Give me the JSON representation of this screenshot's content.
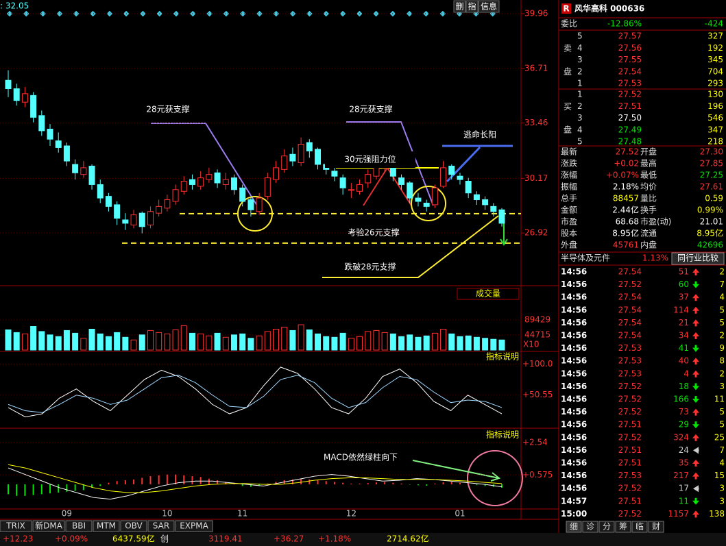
{
  "header": {
    "value_label": ": 32.05",
    "buttons": [
      "删",
      "指",
      "信息"
    ]
  },
  "price_chart": {
    "type": "candlestick",
    "ylim": [
      23.87,
      40.45
    ],
    "yticks": [
      39.96,
      36.71,
      33.46,
      30.17,
      26.92
    ],
    "candles": [
      [
        36.0,
        35.5,
        36.6,
        35.0
      ],
      [
        35.5,
        34.8,
        35.8,
        34.5
      ],
      [
        34.7,
        35.2,
        35.6,
        34.4
      ],
      [
        35.1,
        33.8,
        35.3,
        33.5
      ],
      [
        33.9,
        33.0,
        34.2,
        32.7
      ],
      [
        33.1,
        32.5,
        33.4,
        32.1
      ],
      [
        32.4,
        32.0,
        32.9,
        31.7
      ],
      [
        32.1,
        31.2,
        32.3,
        30.9
      ],
      [
        31.0,
        30.5,
        31.3,
        30.1
      ],
      [
        30.4,
        30.8,
        31.2,
        30.2
      ],
      [
        30.9,
        29.8,
        31.0,
        29.5
      ],
      [
        29.8,
        29.0,
        30.1,
        28.7
      ],
      [
        29.1,
        28.5,
        29.3,
        28.2
      ],
      [
        28.6,
        27.8,
        28.8,
        27.4
      ],
      [
        27.7,
        27.5,
        28.1,
        27.1
      ],
      [
        27.4,
        28.0,
        28.3,
        27.2
      ],
      [
        28.1,
        27.3,
        28.2,
        26.9
      ],
      [
        27.4,
        28.2,
        28.5,
        27.2
      ],
      [
        28.1,
        28.5,
        28.9,
        27.9
      ],
      [
        28.4,
        28.9,
        29.2,
        28.2
      ],
      [
        28.8,
        29.5,
        29.8,
        28.6
      ],
      [
        29.4,
        30.0,
        30.3,
        29.2
      ],
      [
        30.1,
        29.8,
        30.4,
        29.5
      ],
      [
        29.7,
        30.2,
        30.6,
        29.5
      ],
      [
        30.1,
        30.4,
        30.8,
        29.9
      ],
      [
        30.5,
        29.9,
        30.7,
        29.6
      ],
      [
        29.8,
        30.1,
        30.5,
        29.5
      ],
      [
        30.2,
        29.5,
        30.4,
        29.2
      ],
      [
        29.6,
        28.8,
        29.8,
        28.5
      ],
      [
        28.9,
        28.3,
        29.1,
        27.9
      ],
      [
        28.2,
        29.0,
        29.3,
        28.0
      ],
      [
        29.1,
        30.2,
        30.5,
        28.9
      ],
      [
        30.1,
        30.8,
        31.2,
        29.9
      ],
      [
        30.7,
        31.5,
        31.9,
        30.5
      ],
      [
        31.6,
        31.2,
        32.0,
        30.9
      ],
      [
        31.1,
        32.2,
        32.6,
        30.9
      ],
      [
        32.3,
        31.8,
        32.5,
        31.4
      ],
      [
        31.9,
        31.0,
        32.0,
        30.7
      ],
      [
        31.0,
        30.7,
        31.3,
        30.4
      ],
      [
        30.6,
        30.3,
        30.9,
        30.0
      ],
      [
        30.2,
        29.6,
        30.4,
        29.2
      ],
      [
        29.5,
        29.5,
        29.9,
        29.0
      ],
      [
        29.4,
        29.8,
        30.1,
        29.2
      ],
      [
        29.9,
        30.4,
        30.7,
        29.6
      ],
      [
        30.3,
        30.9,
        31.1,
        30.1
      ],
      [
        30.8,
        31.2,
        31.4,
        30.5
      ],
      [
        31.1,
        30.3,
        31.2,
        30.0
      ],
      [
        30.2,
        29.8,
        30.4,
        29.5
      ],
      [
        29.9,
        29.0,
        30.0,
        28.7
      ],
      [
        29.0,
        28.8,
        29.3,
        28.5
      ],
      [
        28.7,
        28.5,
        28.9,
        28.2
      ],
      [
        28.6,
        29.6,
        29.8,
        28.4
      ],
      [
        29.7,
        30.8,
        31.2,
        29.6
      ],
      [
        30.9,
        30.4,
        31.0,
        30.1
      ],
      [
        30.3,
        30.1,
        30.5,
        29.8
      ],
      [
        30.0,
        29.3,
        30.2,
        29.0
      ],
      [
        29.2,
        28.9,
        29.4,
        28.6
      ],
      [
        28.9,
        28.6,
        29.1,
        28.3
      ],
      [
        28.5,
        28.2,
        28.7,
        27.9
      ],
      [
        28.3,
        27.5,
        28.4,
        27.3
      ]
    ],
    "support_levels": [
      28.07,
      26.32
    ],
    "annotations": [
      "28元获支撑",
      "28元获支撑",
      "30元强阻力位",
      "逃命长阳",
      "考验26元支撑",
      "跌破28元支撑"
    ],
    "categories": [
      null,
      null,
      null,
      null,
      null,
      null,
      null,
      "09",
      null,
      null,
      null,
      null,
      null,
      null,
      null,
      null,
      null,
      null,
      null,
      "10",
      null,
      null,
      null,
      null,
      null,
      null,
      null,
      null,
      "11",
      null,
      null,
      null,
      null,
      null,
      null,
      null,
      null,
      null,
      null,
      null,
      null,
      "12",
      null,
      null,
      null,
      null,
      null,
      null,
      null,
      null,
      null,
      null,
      null,
      null,
      "01",
      null,
      null,
      null,
      null,
      null
    ]
  },
  "volume_chart": {
    "type": "bar",
    "title": "成交量",
    "unit": "X10",
    "ylim": [
      0,
      134000
    ],
    "yticks": [
      89429,
      44715
    ],
    "values": [
      60000,
      52000,
      48000,
      70000,
      55000,
      45000,
      40000,
      58000,
      50000,
      35000,
      62000,
      48000,
      40000,
      52000,
      38000,
      30000,
      45000,
      58000,
      52000,
      48000,
      60000,
      72000,
      50000,
      48000,
      42000,
      50000,
      38000,
      45000,
      48000,
      35000,
      42000,
      55000,
      62000,
      68000,
      58000,
      75000,
      60000,
      48000,
      40000,
      38000,
      50000,
      35000,
      40000,
      55000,
      58000,
      52000,
      48000,
      40000,
      45000,
      38000,
      42000,
      50000,
      62000,
      48000,
      40000,
      42000,
      38000,
      35000,
      32000,
      30000
    ]
  },
  "kdj_chart": {
    "type": "line",
    "button": "指标说明",
    "ylim": [
      -2,
      118
    ],
    "yticks": [
      {
        "value": 100,
        "label": "+100.0"
      },
      {
        "value": 50.55,
        "label": "+50.55"
      }
    ],
    "series": [
      {
        "color": "#ffffff",
        "values": [
          30,
          15,
          20,
          45,
          60,
          40,
          25,
          50,
          75,
          90,
          80,
          60,
          35,
          20,
          30,
          65,
          95,
          85,
          60,
          30,
          20,
          45,
          80,
          92,
          70,
          40,
          25,
          50,
          35,
          20
        ]
      },
      {
        "color": "#9fd8ff",
        "values": [
          35,
          25,
          22,
          35,
          50,
          45,
          35,
          42,
          60,
          78,
          82,
          70,
          50,
          32,
          30,
          48,
          75,
          82,
          70,
          45,
          30,
          38,
          62,
          80,
          75,
          55,
          38,
          42,
          40,
          30
        ]
      }
    ]
  },
  "macd_chart": {
    "type": "bar",
    "button": "指标说明",
    "annotation": "MACD依然绿柱向下",
    "ylim": [
      -1.46,
      3.3
    ],
    "yticks": [
      {
        "value": 2.54,
        "label": "+2.54"
      },
      {
        "value": 0.575,
        "label": "+0.575"
      }
    ],
    "values": [
      -0.6,
      -0.7,
      -0.7,
      -0.65,
      -0.6,
      -0.55,
      -0.5,
      -0.45,
      -0.4,
      -0.35,
      -0.2,
      -0.1,
      0.1,
      0.2,
      0.25,
      0.3,
      0.4,
      0.5,
      0.55,
      0.6,
      0.6,
      0.55,
      0.5,
      0.45,
      0.35,
      0.25,
      0.15,
      0.05,
      -0.1,
      -0.15,
      -0.1,
      0.05,
      0.15,
      0.25,
      0.3,
      0.35,
      0.3,
      0.25,
      0.2,
      0.15,
      0.1,
      0.05,
      0.05,
      0.08,
      0.12,
      0.15,
      0.1,
      0.05,
      -0.02,
      -0.05,
      -0.08,
      0.05,
      0.12,
      0.15,
      0.1,
      0.05,
      -0.05,
      -0.1,
      -0.15,
      -0.2
    ],
    "series": [
      {
        "color": "#ffffff",
        "values": [
          1.0,
          0.6,
          0.2,
          -0.2,
          -0.5,
          -0.8,
          -0.9,
          -0.7,
          -0.4,
          -0.1,
          0.1,
          0.2,
          0.2,
          0.1,
          0.0,
          -0.1,
          0.1,
          0.3,
          0.5,
          0.6,
          0.5,
          0.35,
          0.2,
          0.25,
          0.35,
          0.3,
          0.2,
          0.1,
          0.0,
          -0.15
        ]
      },
      {
        "color": "#ffff00",
        "values": [
          1.2,
          1.0,
          0.7,
          0.4,
          0.1,
          -0.2,
          -0.4,
          -0.5,
          -0.5,
          -0.4,
          -0.25,
          -0.1,
          0.0,
          0.05,
          0.05,
          0.0,
          0.0,
          0.1,
          0.25,
          0.35,
          0.4,
          0.4,
          0.35,
          0.3,
          0.3,
          0.3,
          0.25,
          0.2,
          0.12,
          0.05
        ]
      }
    ]
  },
  "indicator_tabs": [
    "TRIX",
    "新DMA",
    "BBI",
    "MTM",
    "OBV",
    "SAR",
    "EXPMA"
  ],
  "quote": {
    "title": "风华高科 000636",
    "ratio_label": "委比",
    "ratio_pct": "-12.86%",
    "ratio_diff": "-424",
    "sell_label": [
      "卖",
      "盘"
    ],
    "buy_label": [
      "买",
      "盘"
    ],
    "asks": [
      [
        "5",
        "27.57",
        "327"
      ],
      [
        "4",
        "27.56",
        "192"
      ],
      [
        "3",
        "27.55",
        "345"
      ],
      [
        "2",
        "27.54",
        "704"
      ],
      [
        "1",
        "27.53",
        "293"
      ]
    ],
    "bids": [
      [
        "1",
        "27.52",
        "130"
      ],
      [
        "2",
        "27.51",
        "196"
      ],
      [
        "3",
        "27.50",
        "546"
      ],
      [
        "4",
        "27.49",
        "347"
      ],
      [
        "5",
        "27.48",
        "218"
      ]
    ],
    "stats": [
      [
        "最新",
        "27.52",
        "开盘",
        "27.30"
      ],
      [
        "涨跌",
        "+0.02",
        "最高",
        "27.85"
      ],
      [
        "涨幅",
        "+0.07%",
        "最低",
        "27.25"
      ],
      [
        "振幅",
        "2.18%",
        "均价",
        "27.61"
      ],
      [
        "总手",
        "88457",
        "量比",
        "0.59"
      ],
      [
        "金额",
        "2.44亿",
        "换手",
        "0.99%"
      ],
      [
        "市盈",
        "68.68",
        "市盈(动)",
        "21.01"
      ],
      [
        "股本",
        "8.95亿",
        "流通",
        "8.95亿"
      ],
      [
        "外盘",
        "45761",
        "内盘",
        "42696"
      ]
    ],
    "industry": [
      "半导体及元件",
      "1.13%",
      "同行业比较"
    ]
  },
  "ticks": [
    {
      "time": "14:56",
      "price": "27.54",
      "volume": "51",
      "direction": "up",
      "extra": "2"
    },
    {
      "time": "14:56",
      "price": "27.52",
      "volume": "60",
      "direction": "down",
      "extra": "7"
    },
    {
      "time": "14:56",
      "price": "27.54",
      "volume": "37",
      "direction": "up",
      "extra": "4"
    },
    {
      "time": "14:56",
      "price": "27.54",
      "volume": "114",
      "direction": "up",
      "extra": "5"
    },
    {
      "time": "14:56",
      "price": "27.54",
      "volume": "21",
      "direction": "up",
      "extra": "5"
    },
    {
      "time": "14:56",
      "price": "27.54",
      "volume": "34",
      "direction": "up",
      "extra": "2"
    },
    {
      "time": "14:56",
      "price": "27.53",
      "volume": "41",
      "direction": "down",
      "extra": "9"
    },
    {
      "time": "14:56",
      "price": "27.53",
      "volume": "40",
      "direction": "up",
      "extra": "8"
    },
    {
      "time": "14:56",
      "price": "27.53",
      "volume": "4",
      "direction": "up",
      "extra": "2"
    },
    {
      "time": "14:56",
      "price": "27.52",
      "volume": "18",
      "direction": "down",
      "extra": "3"
    },
    {
      "time": "14:56",
      "price": "27.52",
      "volume": "166",
      "direction": "down",
      "extra": "11"
    },
    {
      "time": "14:56",
      "price": "27.52",
      "volume": "73",
      "direction": "up",
      "extra": "5"
    },
    {
      "time": "14:56",
      "price": "27.51",
      "volume": "29",
      "direction": "down",
      "extra": "5"
    },
    {
      "time": "14:56",
      "price": "27.52",
      "volume": "324",
      "direction": "up",
      "extra": "25"
    },
    {
      "time": "14:56",
      "price": "27.51",
      "volume": "24",
      "direction": "flat",
      "extra": "7"
    },
    {
      "time": "14:56",
      "price": "27.51",
      "volume": "35",
      "direction": "up",
      "extra": "4"
    },
    {
      "time": "14:56",
      "price": "27.53",
      "volume": "217",
      "direction": "up",
      "extra": "15"
    },
    {
      "time": "14:56",
      "price": "27.52",
      "volume": "17",
      "direction": "flat",
      "extra": "3"
    },
    {
      "time": "14:57",
      "price": "27.51",
      "volume": "11",
      "direction": "down",
      "extra": "3"
    },
    {
      "time": "15:00",
      "price": "27.52",
      "volume": "1157",
      "direction": "up",
      "extra": "138"
    }
  ],
  "bottom_tabs": [
    "细",
    "诊",
    "分",
    "筹",
    "临",
    "财"
  ],
  "status_bar": [
    "+12.23",
    "+0.09%",
    "6437.59亿",
    "创",
    "3119.41",
    "+36.27",
    "+1.18%",
    "2714.62亿"
  ]
}
